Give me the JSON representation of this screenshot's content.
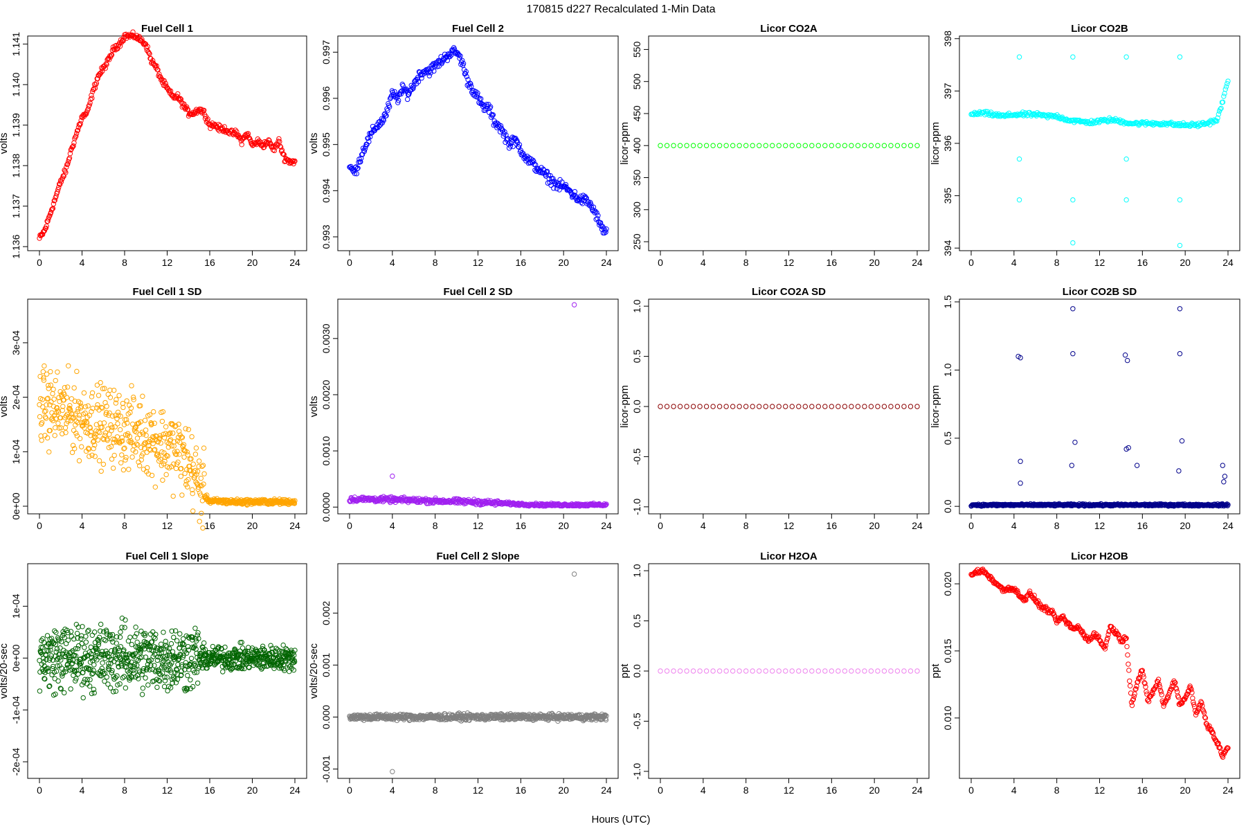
{
  "figure": {
    "title": "170815   d227   Recalculated 1-Min Data",
    "xlabel": "Hours (UTC)"
  },
  "chart_data": [
    {
      "type": "scatter",
      "title": "Fuel Cell 1",
      "ylabel": "volts",
      "color": "#ff0000",
      "xlim": [
        0,
        24
      ],
      "ylim": [
        1.1359,
        1.1412
      ],
      "xticks": [
        0,
        4,
        8,
        12,
        16,
        20,
        24
      ],
      "yticks": [
        1.136,
        1.137,
        1.138,
        1.139,
        1.14,
        1.141
      ],
      "ytick_labels": [
        "1.136",
        "1.137",
        "1.138",
        "1.139",
        "1.140",
        "1.141"
      ],
      "series": [
        {
          "x": [
            0,
            0.5,
            1,
            1.5,
            2,
            2.5,
            3,
            3.5,
            4,
            4.5,
            5,
            5.5,
            6,
            6.5,
            7,
            7.5,
            8,
            8.5,
            9,
            9.5,
            10,
            10.5,
            11,
            11.5,
            12,
            12.5,
            13,
            13.5,
            14,
            14.5,
            15,
            15.5,
            16,
            16.5,
            17,
            17.5,
            18,
            18.5,
            19,
            19.5,
            20,
            20.5,
            21,
            21.5,
            22,
            22.5,
            23,
            23.5,
            24
          ],
          "y": [
            1.1362,
            1.1364,
            1.1368,
            1.1372,
            1.1376,
            1.1379,
            1.1384,
            1.1388,
            1.1392,
            1.1393,
            1.1398,
            1.1402,
            1.1404,
            1.1406,
            1.1409,
            1.141,
            1.1412,
            1.1412,
            1.1412,
            1.1411,
            1.141,
            1.1406,
            1.1404,
            1.1401,
            1.1399,
            1.1397,
            1.1397,
            1.1395,
            1.1393,
            1.1393,
            1.1394,
            1.1393,
            1.139,
            1.139,
            1.1389,
            1.1389,
            1.1388,
            1.1388,
            1.1386,
            1.1388,
            1.1385,
            1.1386,
            1.1385,
            1.1386,
            1.1384,
            1.1386,
            1.1382,
            1.1381,
            1.1381
          ]
        }
      ]
    },
    {
      "type": "scatter",
      "title": "Fuel Cell 2",
      "ylabel": "volts",
      "color": "#0000ff",
      "xlim": [
        0,
        24
      ],
      "ylim": [
        0.9927,
        0.99735
      ],
      "xticks": [
        0,
        4,
        8,
        12,
        16,
        20,
        24
      ],
      "yticks": [
        0.993,
        0.994,
        0.995,
        0.996,
        0.997
      ],
      "ytick_labels": [
        "0.993",
        "0.994",
        "0.995",
        "0.996",
        "0.997"
      ],
      "series": [
        {
          "x": [
            0,
            0.5,
            1,
            1.5,
            2,
            2.5,
            3,
            3.5,
            4,
            4.5,
            5,
            5.5,
            6,
            6.5,
            7,
            7.5,
            8,
            8.5,
            9,
            9.5,
            10,
            10.5,
            11,
            11.5,
            12,
            12.5,
            13,
            13.5,
            14,
            14.5,
            15,
            15.5,
            16,
            16.5,
            17,
            17.5,
            18,
            18.5,
            19,
            19.5,
            20,
            20.5,
            21,
            21.5,
            22,
            22.5,
            23,
            23.5,
            24
          ],
          "y": [
            0.9945,
            0.9944,
            0.9947,
            0.995,
            0.9952,
            0.9954,
            0.9955,
            0.9957,
            0.9961,
            0.996,
            0.9962,
            0.9961,
            0.9963,
            0.9965,
            0.9966,
            0.9966,
            0.9967,
            0.9968,
            0.9969,
            0.997,
            0.997,
            0.9968,
            0.9964,
            0.9962,
            0.996,
            0.9958,
            0.9958,
            0.9955,
            0.9954,
            0.9952,
            0.995,
            0.9951,
            0.9949,
            0.9947,
            0.9946,
            0.9945,
            0.9944,
            0.9943,
            0.9942,
            0.9941,
            0.9941,
            0.994,
            0.9939,
            0.9938,
            0.9938,
            0.9937,
            0.9935,
            0.9932,
            0.9931
          ]
        }
      ]
    },
    {
      "type": "scatter",
      "title": "Licor CO2A",
      "ylabel": "licor-ppm",
      "color": "#00ff00",
      "xlim": [
        0,
        24
      ],
      "ylim": [
        236,
        571
      ],
      "xticks": [
        0,
        4,
        8,
        12,
        16,
        20,
        24
      ],
      "yticks": [
        250,
        300,
        350,
        400,
        450,
        500,
        550
      ],
      "ytick_labels": [
        "250",
        "300",
        "350",
        "400",
        "450",
        "500",
        "550"
      ],
      "series": [
        {
          "x": [
            0,
            24
          ],
          "y": [
            400,
            400
          ]
        }
      ]
    },
    {
      "type": "scatter",
      "title": "Licor CO2B",
      "ylabel": "licor-ppm",
      "color": "#00ffff",
      "xlim": [
        0,
        24
      ],
      "ylim": [
        393.95,
        398.05
      ],
      "xticks": [
        0,
        4,
        8,
        12,
        16,
        20,
        24
      ],
      "yticks": [
        394,
        395,
        396,
        397,
        398
      ],
      "ytick_labels": [
        "394",
        "395",
        "396",
        "397",
        "398"
      ],
      "series": [
        {
          "x": [
            0,
            1,
            2,
            3,
            4,
            5,
            6,
            7,
            8,
            9,
            10,
            11,
            12,
            13,
            14,
            15,
            16,
            17,
            18,
            19,
            20,
            21,
            22,
            23,
            23.5,
            24
          ],
          "y": [
            396.55,
            396.58,
            396.55,
            396.52,
            396.55,
            396.55,
            396.55,
            396.52,
            396.52,
            396.45,
            396.42,
            396.4,
            396.42,
            396.45,
            396.42,
            396.38,
            396.38,
            396.38,
            396.38,
            396.36,
            396.35,
            396.35,
            396.38,
            396.45,
            396.8,
            397.2
          ]
        },
        {
          "name": "outliers",
          "x": [
            4.5,
            4.5,
            4.5,
            9.5,
            9.5,
            9.5,
            14.5,
            14.5,
            14.5,
            19.5,
            19.5,
            19.5
          ],
          "y": [
            397.65,
            394.92,
            395.7,
            397.65,
            394.92,
            394.1,
            397.65,
            394.92,
            395.7,
            397.65,
            394.92,
            394.05
          ]
        }
      ]
    },
    {
      "type": "scatter",
      "title": "Fuel Cell 1 SD",
      "ylabel": "volts",
      "color": "#ffa500",
      "xlim": [
        0,
        24
      ],
      "ylim": [
        -1.4e-05,
        0.00038
      ],
      "xticks": [
        0,
        4,
        8,
        12,
        16,
        20,
        24
      ],
      "yticks": [
        0,
        0.0001,
        0.0002,
        0.0003
      ],
      "ytick_labels": [
        "0e+00",
        "1e-04",
        "2e-04",
        "3e-04"
      ],
      "series": [
        {
          "x": [
            0,
            1,
            2,
            3,
            4,
            5,
            6,
            7,
            8,
            9,
            10,
            11,
            12,
            13,
            14,
            15,
            15.5,
            16,
            17,
            18,
            19,
            20,
            21,
            22,
            23,
            24
          ],
          "y": [
            0.000185,
            0.00018,
            0.000175,
            0.00017,
            0.00016,
            0.000155,
            0.00015,
            0.000145,
            0.00014,
            0.000135,
            0.00013,
            0.00012,
            0.00011,
            0.0001,
            8e-05,
            4e-05,
            2e-05,
            9e-06,
            9e-06,
            8e-06,
            8e-06,
            8e-06,
            8e-06,
            8e-06,
            8e-06,
            8e-06
          ]
        }
      ]
    },
    {
      "type": "scatter",
      "title": "Fuel Cell 2 SD",
      "ylabel": "volts",
      "color": "#a020f0",
      "xlim": [
        0,
        24
      ],
      "ylim": [
        -0.00012,
        0.0037
      ],
      "xticks": [
        0,
        4,
        8,
        12,
        16,
        20,
        24
      ],
      "yticks": [
        0,
        0.001,
        0.002,
        0.003
      ],
      "ytick_labels": [
        "0.0000",
        "0.0010",
        "0.0020",
        "0.0030"
      ],
      "series": [
        {
          "x": [
            0,
            2,
            4,
            6,
            8,
            10,
            12,
            14,
            16,
            18,
            20,
            22,
            24
          ],
          "y": [
            0.00014,
            0.00014,
            0.00013,
            0.00012,
            0.00011,
            0.0001,
            9e-05,
            7e-05,
            5e-05,
            4e-05,
            4e-05,
            4e-05,
            4e-05
          ]
        },
        {
          "name": "outliers",
          "x": [
            4,
            21
          ],
          "y": [
            0.00055,
            0.0036
          ]
        }
      ]
    },
    {
      "type": "scatter",
      "title": "Licor CO2A SD",
      "ylabel": "licor-ppm",
      "color": "#8b0000",
      "xlim": [
        0,
        24
      ],
      "ylim": [
        -1.07,
        1.07
      ],
      "xticks": [
        0,
        4,
        8,
        12,
        16,
        20,
        24
      ],
      "yticks": [
        -1,
        -0.5,
        0,
        0.5,
        1
      ],
      "ytick_labels": [
        "-1.0",
        "-0.5",
        "0.0",
        "0.5",
        "1.0"
      ],
      "series": [
        {
          "x": [
            0,
            24
          ],
          "y": [
            0,
            0
          ]
        }
      ]
    },
    {
      "type": "scatter",
      "title": "Licor CO2B SD",
      "ylabel": "licor-ppm",
      "color": "#00008b",
      "xlim": [
        0,
        24
      ],
      "ylim": [
        -0.055,
        1.52
      ],
      "xticks": [
        0,
        4,
        8,
        12,
        16,
        20,
        24
      ],
      "yticks": [
        0,
        0.5,
        1,
        1.5
      ],
      "ytick_labels": [
        "0.0",
        "0.5",
        "1.0",
        "1.5"
      ],
      "series": [
        {
          "x": [
            0,
            24
          ],
          "y": [
            0.01,
            0.01
          ]
        },
        {
          "name": "outliers",
          "x": [
            4.4,
            4.6,
            4.6,
            4.6,
            9.5,
            9.5,
            9.7,
            9.4,
            14.4,
            14.6,
            14.7,
            14.5,
            15.5,
            19.5,
            19.5,
            19.7,
            19.4,
            23.5,
            23.7,
            23.6
          ],
          "y": [
            1.1,
            1.09,
            0.33,
            0.17,
            1.45,
            1.12,
            0.47,
            0.3,
            1.11,
            1.07,
            0.43,
            0.42,
            0.3,
            1.45,
            1.12,
            0.48,
            0.26,
            0.3,
            0.22,
            0.18
          ]
        }
      ]
    },
    {
      "type": "scatter",
      "title": "Fuel Cell 1 Slope",
      "ylabel": "volts/20-sec",
      "color": "#006400",
      "xlim": [
        0,
        24
      ],
      "ylim": [
        -0.000232,
        0.000182
      ],
      "xticks": [
        0,
        4,
        8,
        12,
        16,
        20,
        24
      ],
      "yticks": [
        -0.0002,
        -0.0001,
        0,
        0.0001
      ],
      "ytick_labels": [
        "-2e-04",
        "-1e-04",
        "0e+00",
        "1e-04"
      ],
      "series": [
        {
          "x": [
            0,
            24
          ],
          "y": [
            0,
            0
          ]
        }
      ]
    },
    {
      "type": "scatter",
      "title": "Fuel Cell 2 Slope",
      "ylabel": "volts/20-sec",
      "color": "#808080",
      "xlim": [
        0,
        24
      ],
      "ylim": [
        -0.00118,
        0.00295
      ],
      "xticks": [
        0,
        4,
        8,
        12,
        16,
        20,
        24
      ],
      "yticks": [
        -0.001,
        0,
        0.001,
        0.002
      ],
      "ytick_labels": [
        "-0.001",
        "0.000",
        "0.001",
        "0.002"
      ],
      "series": [
        {
          "x": [
            0,
            24
          ],
          "y": [
            0,
            0
          ]
        },
        {
          "name": "outliers",
          "x": [
            4,
            21
          ],
          "y": [
            -0.00105,
            0.00275
          ]
        }
      ]
    },
    {
      "type": "scatter",
      "title": "Licor H2OA",
      "ylabel": "ppt",
      "color": "#ee82ee",
      "xlim": [
        0,
        24
      ],
      "ylim": [
        -1.07,
        1.07
      ],
      "xticks": [
        0,
        4,
        8,
        12,
        16,
        20,
        24
      ],
      "yticks": [
        -1,
        -0.5,
        0,
        0.5,
        1
      ],
      "ytick_labels": [
        "-1.0",
        "-0.5",
        "0.0",
        "0.5",
        "1.0"
      ],
      "series": [
        {
          "x": [
            0,
            24
          ],
          "y": [
            0,
            0
          ]
        }
      ]
    },
    {
      "type": "scatter",
      "title": "Licor H2OB",
      "ylabel": "ppt",
      "color": "#ff0000",
      "xlim": [
        0,
        24
      ],
      "ylim": [
        0.0055,
        0.0215
      ],
      "xticks": [
        0,
        4,
        8,
        12,
        16,
        20,
        24
      ],
      "yticks": [
        0.01,
        0.015,
        0.02
      ],
      "ytick_labels": [
        "0.010",
        "0.015",
        "0.020"
      ],
      "series": [
        {
          "x": [
            0,
            0.5,
            1,
            1.5,
            2,
            2.5,
            3,
            3.5,
            4,
            4.5,
            5,
            5.5,
            6,
            6.5,
            7,
            7.5,
            8,
            8.5,
            9,
            9.5,
            10,
            10.5,
            11,
            11.5,
            12,
            12.5,
            13,
            13.5,
            14,
            14.5,
            15,
            15.5,
            16,
            16.5,
            17,
            17.5,
            18,
            18.5,
            19,
            19.5,
            20,
            20.5,
            21,
            21.5,
            22,
            22.5,
            23,
            23.5,
            24
          ],
          "y": [
            0.0206,
            0.0209,
            0.021,
            0.0207,
            0.0203,
            0.0199,
            0.0195,
            0.0197,
            0.0196,
            0.0192,
            0.0188,
            0.0193,
            0.0188,
            0.0183,
            0.0181,
            0.0179,
            0.0172,
            0.0175,
            0.0171,
            0.0166,
            0.0168,
            0.0162,
            0.0158,
            0.0163,
            0.0158,
            0.0152,
            0.0168,
            0.0164,
            0.0158,
            0.0159,
            0.011,
            0.0126,
            0.0136,
            0.0112,
            0.012,
            0.0128,
            0.0109,
            0.0118,
            0.0128,
            0.011,
            0.0115,
            0.0124,
            0.0102,
            0.0112,
            0.0096,
            0.009,
            0.0081,
            0.0072,
            0.0078
          ]
        }
      ]
    }
  ]
}
